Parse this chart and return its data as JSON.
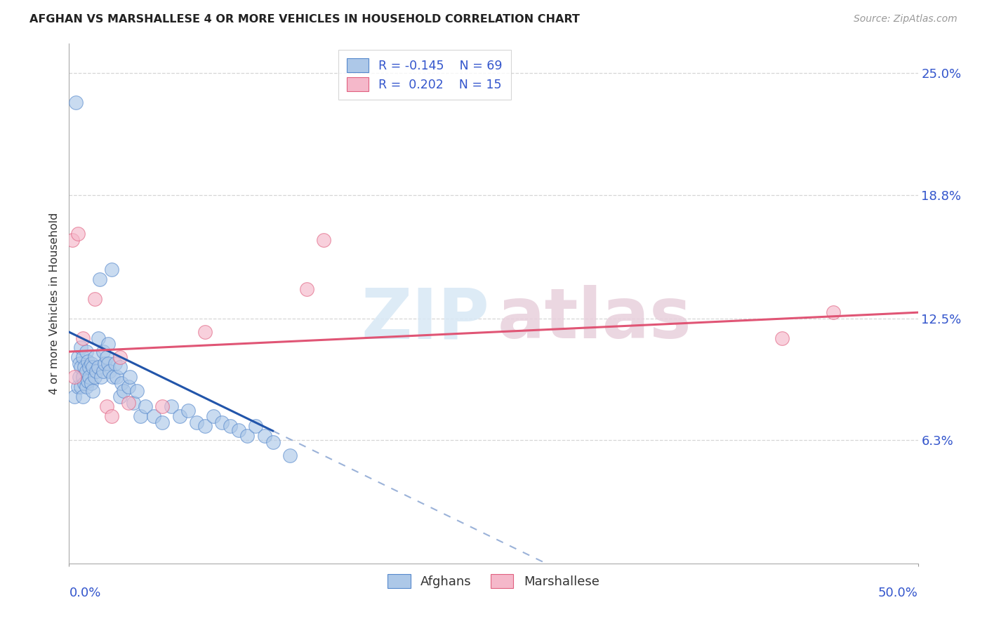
{
  "title": "AFGHAN VS MARSHALLESE 4 OR MORE VEHICLES IN HOUSEHOLD CORRELATION CHART",
  "source": "Source: ZipAtlas.com",
  "ylabel": "4 or more Vehicles in Household",
  "watermark_top": "ZIP",
  "watermark_bot": "atlas",
  "legend_afghan_R": "-0.145",
  "legend_afghan_N": "69",
  "legend_marshall_R": "0.202",
  "legend_marshall_N": "15",
  "xlim": [
    0.0,
    50.0
  ],
  "ylim": [
    0.0,
    26.5
  ],
  "yticks_values": [
    6.3,
    12.5,
    18.8,
    25.0
  ],
  "yticks_labels": [
    "6.3%",
    "12.5%",
    "18.8%",
    "25.0%"
  ],
  "afghan_color": "#adc8e8",
  "marshall_color": "#f5b8ca",
  "afghan_edge_color": "#5588cc",
  "marshall_edge_color": "#e06080",
  "afghan_line_color": "#2255aa",
  "marshall_line_color": "#e05575",
  "background_color": "#ffffff",
  "grid_color": "#cccccc",
  "title_color": "#222222",
  "source_color": "#999999",
  "axis_label_color": "#333333",
  "tick_label_color": "#3355cc",
  "dot_size": 200,
  "dot_alpha": 0.65,
  "afghan_x": [
    0.4,
    0.3,
    0.5,
    0.5,
    0.6,
    0.6,
    0.7,
    0.7,
    0.7,
    0.8,
    0.8,
    0.8,
    0.9,
    0.9,
    1.0,
    1.0,
    1.0,
    1.1,
    1.1,
    1.2,
    1.2,
    1.3,
    1.3,
    1.4,
    1.4,
    1.5,
    1.5,
    1.6,
    1.7,
    1.7,
    1.8,
    1.9,
    2.0,
    2.0,
    2.1,
    2.2,
    2.3,
    2.3,
    2.4,
    2.5,
    2.6,
    2.7,
    2.8,
    3.0,
    3.0,
    3.1,
    3.2,
    3.5,
    3.6,
    3.8,
    4.0,
    4.2,
    4.5,
    5.0,
    5.5,
    6.0,
    6.5,
    7.0,
    7.5,
    8.0,
    8.5,
    9.0,
    9.5,
    10.0,
    10.5,
    11.0,
    11.5,
    12.0,
    13.0
  ],
  "afghan_y": [
    23.5,
    8.5,
    10.5,
    9.0,
    10.2,
    9.5,
    11.0,
    10.0,
    9.0,
    10.5,
    9.5,
    8.5,
    10.0,
    9.2,
    10.8,
    9.8,
    9.0,
    10.3,
    9.3,
    10.0,
    9.5,
    10.2,
    9.2,
    10.0,
    8.8,
    10.5,
    9.5,
    9.8,
    11.5,
    10.0,
    14.5,
    9.5,
    10.8,
    9.8,
    10.2,
    10.5,
    11.2,
    10.2,
    9.8,
    15.0,
    9.5,
    10.2,
    9.5,
    10.0,
    8.5,
    9.2,
    8.8,
    9.0,
    9.5,
    8.2,
    8.8,
    7.5,
    8.0,
    7.5,
    7.2,
    8.0,
    7.5,
    7.8,
    7.2,
    7.0,
    7.5,
    7.2,
    7.0,
    6.8,
    6.5,
    7.0,
    6.5,
    6.2,
    5.5
  ],
  "marshall_x": [
    0.2,
    0.3,
    0.5,
    0.8,
    1.5,
    2.2,
    2.5,
    3.0,
    3.5,
    5.5,
    8.0,
    14.0,
    15.0,
    42.0,
    45.0
  ],
  "marshall_y": [
    16.5,
    9.5,
    16.8,
    11.5,
    13.5,
    8.0,
    7.5,
    10.5,
    8.2,
    8.0,
    11.8,
    14.0,
    16.5,
    11.5,
    12.8
  ],
  "afghan_line_x0": 0.0,
  "afghan_line_x1_solid": 12.0,
  "afghan_line_x1_dash": 50.0,
  "afghan_line_intercept": 11.8,
  "afghan_line_slope": -0.42,
  "marshall_line_intercept": 10.8,
  "marshall_line_slope": 0.04
}
